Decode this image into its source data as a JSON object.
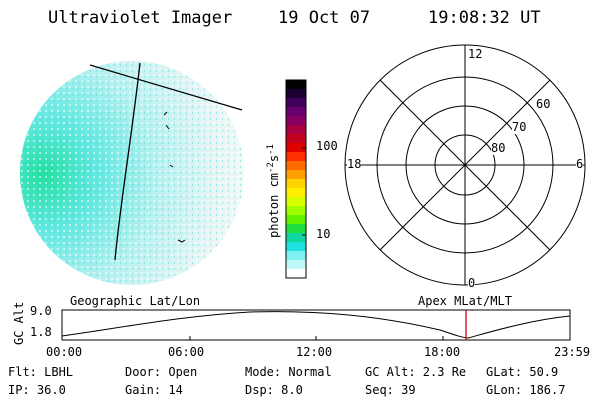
{
  "header": {
    "instrument": "Ultraviolet Imager",
    "date": "19 Oct 07",
    "time": "19:08:32 UT"
  },
  "colorbar": {
    "unit_label": "photon cm",
    "ticks": [
      "100",
      "10"
    ],
    "colors": [
      "#000000",
      "#1a0030",
      "#40005a",
      "#6a0070",
      "#8a0060",
      "#a80040",
      "#c40020",
      "#e00000",
      "#ff3000",
      "#ff6a00",
      "#ffa000",
      "#ffd200",
      "#fff000",
      "#d8ff00",
      "#a0ff00",
      "#60f000",
      "#20e040",
      "#10d8a0",
      "#20e0e0",
      "#80f0f0",
      "#c0f8f8",
      "#ffffff"
    ]
  },
  "polar": {
    "mlt_labels": {
      "top": "12",
      "left": "18",
      "right": "6",
      "bottom": "0"
    },
    "lat_labels": [
      "60",
      "70",
      "80"
    ]
  },
  "track": {
    "left_title": "Geographic Lat/Lon",
    "right_title": "Apex MLat/MLT",
    "ylabel": "GC Alt",
    "y_ticks": [
      "9.0",
      "1.8"
    ],
    "x_ticks": [
      "00:00",
      "06:00",
      "12:00",
      "18:00",
      "23:59"
    ]
  },
  "status": {
    "row1": [
      "Flt: LBHL",
      "Door: Open",
      "Mode: Normal",
      "GC Alt: 2.3 Re",
      "GLat:  50.9"
    ],
    "row2": [
      "IP: 36.0",
      "Gain: 14",
      "Dsp:    8.0",
      "Seq: 39",
      "GLon: 186.7"
    ]
  },
  "style": {
    "marker_color": "#cc0000"
  }
}
